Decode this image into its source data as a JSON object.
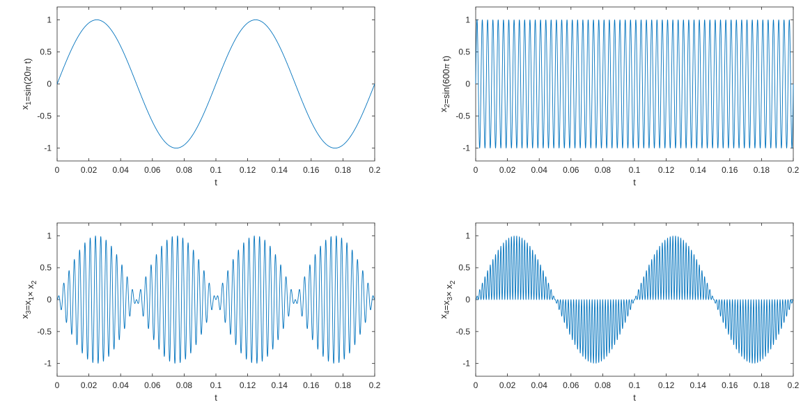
{
  "chart_data": [
    {
      "type": "line",
      "ylabel": {
        "main": "x",
        "sub1": "1",
        "rest": "=sin(20",
        "pi": "π",
        "tail": " t)"
      },
      "xlabel": "t",
      "xlim": [
        0,
        0.2
      ],
      "ylim": [
        -1.2,
        1.2
      ],
      "xticks": [
        0,
        0.02,
        0.04,
        0.06,
        0.08,
        0.1,
        0.12,
        0.14,
        0.16,
        0.18,
        0.2
      ],
      "xtick_labels": [
        "0",
        "0.02",
        "0.04",
        "0.06",
        "0.08",
        "0.1",
        "0.12",
        "0.14",
        "0.16",
        "0.18",
        "0.2"
      ],
      "yticks": [
        1,
        0.5,
        0,
        -0.5,
        -1
      ],
      "ytick_labels": [
        "1",
        "0.5",
        "0",
        "-0.5",
        "-1"
      ],
      "series": [
        {
          "formula": "sin(20*pi*t)",
          "color": "#0072bd"
        }
      ]
    },
    {
      "type": "line",
      "ylabel": {
        "main": "x",
        "sub1": "2",
        "rest": "=sin(600",
        "pi": "π",
        "tail": " t)"
      },
      "xlabel": "t",
      "xlim": [
        0,
        0.2
      ],
      "ylim": [
        -1.2,
        1.2
      ],
      "xticks": [
        0,
        0.02,
        0.04,
        0.06,
        0.08,
        0.1,
        0.12,
        0.14,
        0.16,
        0.18,
        0.2
      ],
      "xtick_labels": [
        "0",
        "0.02",
        "0.04",
        "0.06",
        "0.08",
        "0.1",
        "0.12",
        "0.14",
        "0.16",
        "0.18",
        "0.2"
      ],
      "yticks": [
        1,
        0.5,
        0,
        -0.5,
        -1
      ],
      "ytick_labels": [
        "1",
        "0.5",
        "0",
        "-0.5",
        "-1"
      ],
      "series": [
        {
          "formula": "sin(600*pi*t)",
          "color": "#0072bd"
        }
      ]
    },
    {
      "type": "line",
      "ylabel": {
        "main": "x",
        "sub1": "3",
        "mid": "=x",
        "sub2": "1",
        "times": "×",
        "tail": " x",
        "sub3": "2"
      },
      "xlabel": "t",
      "xlim": [
        0,
        0.2
      ],
      "ylim": [
        -1.2,
        1.2
      ],
      "xticks": [
        0,
        0.02,
        0.04,
        0.06,
        0.08,
        0.1,
        0.12,
        0.14,
        0.16,
        0.18,
        0.2
      ],
      "xtick_labels": [
        "0",
        "0.02",
        "0.04",
        "0.06",
        "0.08",
        "0.1",
        "0.12",
        "0.14",
        "0.16",
        "0.18",
        "0.2"
      ],
      "yticks": [
        1,
        0.5,
        0,
        -0.5,
        -1
      ],
      "ytick_labels": [
        "1",
        "0.5",
        "0",
        "-0.5",
        "-1"
      ],
      "series": [
        {
          "formula": "sin(20*pi*t)*sin(600*pi*t)",
          "color": "#0072bd"
        }
      ]
    },
    {
      "type": "line",
      "ylabel": {
        "main": "x",
        "sub1": "4",
        "mid": "=x",
        "sub2": "3",
        "times": "×",
        "tail": " x",
        "sub3": "2"
      },
      "xlabel": "t",
      "xlim": [
        0,
        0.2
      ],
      "ylim": [
        -1.2,
        1.2
      ],
      "xticks": [
        0,
        0.02,
        0.04,
        0.06,
        0.08,
        0.1,
        0.12,
        0.14,
        0.16,
        0.18,
        0.2
      ],
      "xtick_labels": [
        "0",
        "0.02",
        "0.04",
        "0.06",
        "0.08",
        "0.1",
        "0.12",
        "0.14",
        "0.16",
        "0.18",
        "0.2"
      ],
      "yticks": [
        1,
        0.5,
        0,
        -0.5,
        -1
      ],
      "ytick_labels": [
        "1",
        "0.5",
        "0",
        "-0.5",
        "-1"
      ],
      "series": [
        {
          "formula": "sin(20*pi*t)*sin(600*pi*t)^2",
          "color": "#0072bd"
        }
      ]
    }
  ]
}
